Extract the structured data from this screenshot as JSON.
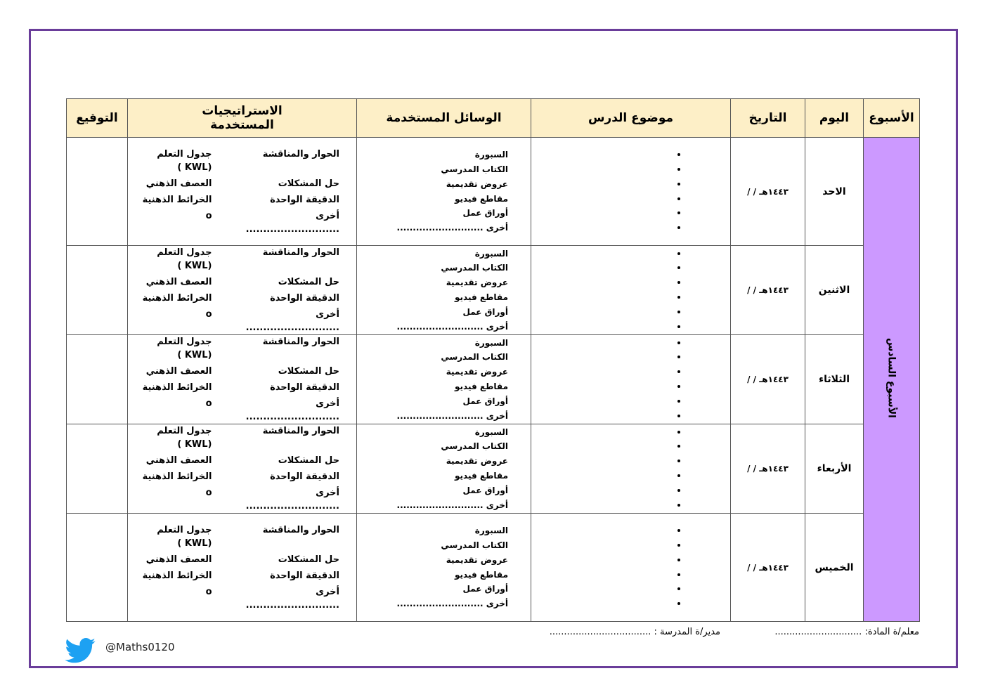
{
  "headers": {
    "week": "الأسبوع",
    "day": "اليوم",
    "date": "التاريخ",
    "topic": "موضوع الدرس",
    "tools": "الوسائل المستخدمة",
    "strategies": "الاستراتيجيات المستخدمة",
    "signature": "التوقيع"
  },
  "week_label": "الأسبوع السادس",
  "date_template": "/   /  ١٤٤٣هـ",
  "days": [
    "الاحد",
    "الاثنين",
    "الثلاثاء",
    "الأربعاء",
    "الخميس"
  ],
  "tools": [
    "السبورة",
    "الكتاب المدرسي",
    "عروض تقديمية",
    "مقاطع فيديو",
    "أوراق عمل",
    "أخرى ..........................."
  ],
  "strategies": {
    "col1": [
      "الحوار والمناقشة",
      "حل المشكلات",
      "الدقيقة الواحدة",
      "أخرى ..........................."
    ],
    "col2": [
      "جدول التعلم (KWL )",
      "العصف الذهني",
      "الخرائط الذهنية",
      "o"
    ]
  },
  "footer": {
    "teacher": "معلم/ة المادة: ..............................",
    "principal": "مدير/ة المدرسة : ..................................."
  },
  "twitter": "@Maths0120",
  "colors": {
    "frame": "#6a3d9a",
    "header_bg": "#fdefc7",
    "week_bg": "#cc99ff",
    "twitter": "#1da1f2"
  }
}
